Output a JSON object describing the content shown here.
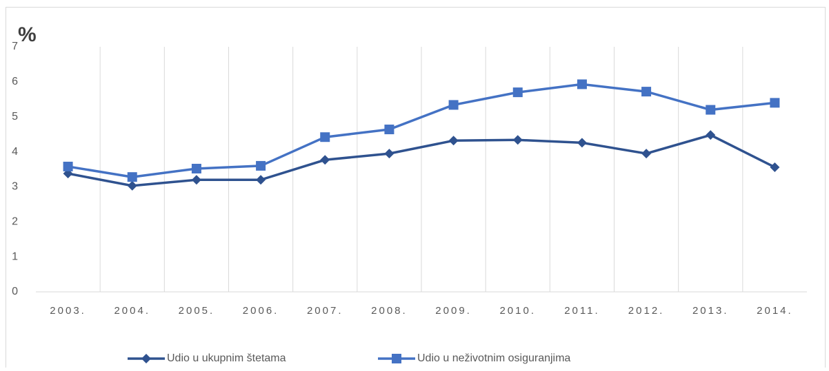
{
  "chart_data": {
    "type": "line",
    "y_label": "%",
    "categories": [
      "2003.",
      "2004.",
      "2005.",
      "2006.",
      "2007.",
      "2008.",
      "2009.",
      "2010.",
      "2011.",
      "2012.",
      "2013.",
      "2014."
    ],
    "series": [
      {
        "name": "Udio u ukupnim štetama",
        "color": "#2f528f",
        "marker": "diamond",
        "values": [
          3.38,
          3.03,
          3.2,
          3.2,
          3.77,
          3.95,
          4.32,
          4.34,
          4.26,
          3.95,
          4.48,
          3.56
        ]
      },
      {
        "name": "Udio u neživotnim osiguranjima",
        "color": "#4472c4",
        "marker": "square",
        "values": [
          3.58,
          3.28,
          3.52,
          3.6,
          4.42,
          4.64,
          5.34,
          5.7,
          5.93,
          5.72,
          5.2,
          5.4
        ]
      }
    ],
    "ylim": [
      0,
      7
    ],
    "yticks": [
      0,
      1,
      2,
      3,
      4,
      5,
      6,
      7
    ],
    "grid": "vertical",
    "legend": "bottom"
  }
}
